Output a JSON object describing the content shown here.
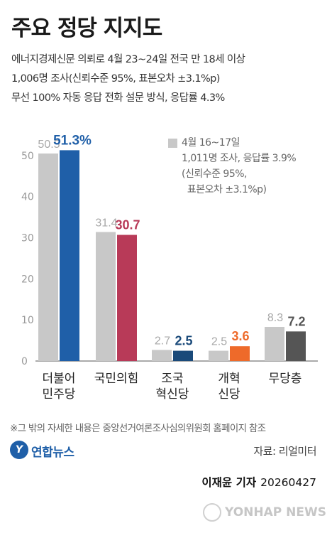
{
  "title": "주요 정당 지지도",
  "subtitle_lines": [
    "에너지경제신문 의뢰로 4월 23~24일 전국 만 18세 이상",
    "1,006명 조사(신뢰수준 95%, 표본오차 ±3.1%p)",
    "무선 100% 자동 응답 전화 설문 방식, 응답률 4.3%"
  ],
  "legend_lines": [
    "4월 16~17일",
    "1,011명 조사, 응답률 3.9%",
    "(신뢰수준 95%,",
    "  표본오차 ±3.1%p)"
  ],
  "chart_data": {
    "type": "bar",
    "ylim": [
      0,
      55
    ],
    "yticks": [
      0,
      10,
      20,
      30,
      40,
      50
    ],
    "grid": false,
    "categories": [
      [
        "더불어",
        "민주당"
      ],
      [
        "국민의힘"
      ],
      [
        "조국",
        "혁신당"
      ],
      [
        "개혁",
        "신당"
      ],
      [
        "무당층"
      ]
    ],
    "series": [
      {
        "name": "4월 16~17일",
        "values": [
          50.5,
          31.4,
          2.7,
          2.5,
          8.3
        ],
        "labels": [
          "50.5",
          "31.4",
          "2.7",
          "2.5",
          "8.3"
        ],
        "color": "#c8c8c8",
        "label_color": "#a8a8a8"
      },
      {
        "name": "4월 23~24일",
        "values": [
          51.3,
          30.7,
          2.5,
          3.6,
          7.2
        ],
        "labels": [
          "51.3%",
          "30.7",
          "2.5",
          "3.6",
          "7.2"
        ],
        "colors": [
          "#1f5fa8",
          "#b83a58",
          "#1a4a7a",
          "#ee6a2a",
          "#555555"
        ]
      }
    ]
  },
  "footnote": "※그 밖의 자세한 내용은 중앙선거여론조사심의위원회 홈페이지 참조",
  "logo_text": "연합뉴스",
  "source": "자료: 리얼미터",
  "byline_name": "이재윤 기자",
  "byline_date": "20260427",
  "watermark": "YONHAP NEWS"
}
